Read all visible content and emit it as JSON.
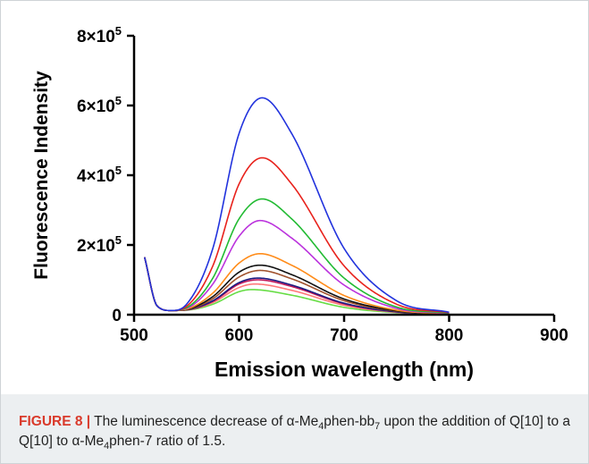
{
  "chart_data": {
    "type": "line",
    "title": "",
    "xlabel": "Emission wavelength (nm)",
    "ylabel": "Fluorescence Indensity",
    "xlim": [
      500,
      900
    ],
    "ylim": [
      0,
      800000
    ],
    "x_ticks": [
      500,
      600,
      700,
      800,
      900
    ],
    "x_tick_labels": [
      "500",
      "600",
      "700",
      "800",
      "900"
    ],
    "y_ticks": [
      0,
      200000,
      400000,
      600000,
      800000
    ],
    "y_tick_labels": [
      {
        "mant": "0",
        "exp": ""
      },
      {
        "mant": "2×10",
        "exp": "5"
      },
      {
        "mant": "4×10",
        "exp": "5"
      },
      {
        "mant": "6×10",
        "exp": "5"
      },
      {
        "mant": "8×10",
        "exp": "5"
      }
    ],
    "x_range": [
      510,
      800
    ],
    "grid": false,
    "legend": "none",
    "series": [
      {
        "color": "#2233dd",
        "peak_x": 622,
        "values": [
          {
            "x": 510,
            "y": 165000
          },
          {
            "x": 522,
            "y": 25000
          },
          {
            "x": 535,
            "y": 12000
          },
          {
            "x": 550,
            "y": 30000
          },
          {
            "x": 575,
            "y": 190000
          },
          {
            "x": 600,
            "y": 520000
          },
          {
            "x": 622,
            "y": 622000
          },
          {
            "x": 650,
            "y": 520000
          },
          {
            "x": 700,
            "y": 190000
          },
          {
            "x": 750,
            "y": 40000
          },
          {
            "x": 800,
            "y": 7000
          }
        ]
      },
      {
        "color": "#e8221c",
        "peak_x": 622,
        "values": [
          {
            "x": 510,
            "y": 165000
          },
          {
            "x": 522,
            "y": 25000
          },
          {
            "x": 535,
            "y": 12000
          },
          {
            "x": 550,
            "y": 24000
          },
          {
            "x": 575,
            "y": 140000
          },
          {
            "x": 600,
            "y": 375000
          },
          {
            "x": 622,
            "y": 450000
          },
          {
            "x": 650,
            "y": 375000
          },
          {
            "x": 700,
            "y": 140000
          },
          {
            "x": 750,
            "y": 30000
          },
          {
            "x": 800,
            "y": 6000
          }
        ]
      },
      {
        "color": "#22bb33",
        "peak_x": 622,
        "values": [
          {
            "x": 510,
            "y": 165000
          },
          {
            "x": 522,
            "y": 25000
          },
          {
            "x": 535,
            "y": 12000
          },
          {
            "x": 550,
            "y": 20000
          },
          {
            "x": 575,
            "y": 105000
          },
          {
            "x": 600,
            "y": 275000
          },
          {
            "x": 622,
            "y": 332000
          },
          {
            "x": 650,
            "y": 275000
          },
          {
            "x": 700,
            "y": 105000
          },
          {
            "x": 750,
            "y": 22000
          },
          {
            "x": 800,
            "y": 5000
          }
        ]
      },
      {
        "color": "#bb33dd",
        "peak_x": 620,
        "values": [
          {
            "x": 510,
            "y": 165000
          },
          {
            "x": 522,
            "y": 25000
          },
          {
            "x": 535,
            "y": 12000
          },
          {
            "x": 550,
            "y": 18000
          },
          {
            "x": 575,
            "y": 88000
          },
          {
            "x": 600,
            "y": 225000
          },
          {
            "x": 620,
            "y": 270000
          },
          {
            "x": 650,
            "y": 220000
          },
          {
            "x": 700,
            "y": 85000
          },
          {
            "x": 750,
            "y": 18000
          },
          {
            "x": 800,
            "y": 4000
          }
        ]
      },
      {
        "color": "#ff8c1a",
        "peak_x": 620,
        "values": [
          {
            "x": 510,
            "y": 165000
          },
          {
            "x": 522,
            "y": 25000
          },
          {
            "x": 535,
            "y": 12000
          },
          {
            "x": 550,
            "y": 16000
          },
          {
            "x": 575,
            "y": 62000
          },
          {
            "x": 600,
            "y": 148000
          },
          {
            "x": 620,
            "y": 175000
          },
          {
            "x": 650,
            "y": 142000
          },
          {
            "x": 700,
            "y": 55000
          },
          {
            "x": 750,
            "y": 13000
          },
          {
            "x": 800,
            "y": 3000
          }
        ]
      },
      {
        "color": "#111111",
        "peak_x": 620,
        "values": [
          {
            "x": 510,
            "y": 165000
          },
          {
            "x": 522,
            "y": 25000
          },
          {
            "x": 535,
            "y": 12000
          },
          {
            "x": 550,
            "y": 15000
          },
          {
            "x": 575,
            "y": 52000
          },
          {
            "x": 600,
            "y": 122000
          },
          {
            "x": 620,
            "y": 142000
          },
          {
            "x": 650,
            "y": 115000
          },
          {
            "x": 700,
            "y": 45000
          },
          {
            "x": 750,
            "y": 11000
          },
          {
            "x": 800,
            "y": 3000
          }
        ]
      },
      {
        "color": "#a0522d",
        "peak_x": 620,
        "values": [
          {
            "x": 510,
            "y": 165000
          },
          {
            "x": 522,
            "y": 25000
          },
          {
            "x": 535,
            "y": 12000
          },
          {
            "x": 550,
            "y": 14500
          },
          {
            "x": 575,
            "y": 46000
          },
          {
            "x": 600,
            "y": 108000
          },
          {
            "x": 620,
            "y": 127000
          },
          {
            "x": 650,
            "y": 103000
          },
          {
            "x": 700,
            "y": 40000
          },
          {
            "x": 750,
            "y": 10000
          },
          {
            "x": 800,
            "y": 3000
          }
        ]
      },
      {
        "color": "#1a1a80",
        "peak_x": 618,
        "values": [
          {
            "x": 510,
            "y": 165000
          },
          {
            "x": 522,
            "y": 25000
          },
          {
            "x": 535,
            "y": 12000
          },
          {
            "x": 550,
            "y": 14000
          },
          {
            "x": 575,
            "y": 40000
          },
          {
            "x": 600,
            "y": 92000
          },
          {
            "x": 618,
            "y": 105000
          },
          {
            "x": 650,
            "y": 85000
          },
          {
            "x": 700,
            "y": 33000
          },
          {
            "x": 750,
            "y": 8000
          },
          {
            "x": 800,
            "y": 2500
          }
        ]
      },
      {
        "color": "#c01a5a",
        "peak_x": 618,
        "values": [
          {
            "x": 510,
            "y": 165000
          },
          {
            "x": 522,
            "y": 25000
          },
          {
            "x": 535,
            "y": 12000
          },
          {
            "x": 550,
            "y": 13800
          },
          {
            "x": 575,
            "y": 38000
          },
          {
            "x": 600,
            "y": 88000
          },
          {
            "x": 618,
            "y": 100000
          },
          {
            "x": 650,
            "y": 81000
          },
          {
            "x": 700,
            "y": 31000
          },
          {
            "x": 750,
            "y": 8000
          },
          {
            "x": 800,
            "y": 2500
          }
        ]
      },
      {
        "color": "#ff7777",
        "peak_x": 615,
        "values": [
          {
            "x": 510,
            "y": 165000
          },
          {
            "x": 522,
            "y": 25000
          },
          {
            "x": 535,
            "y": 12000
          },
          {
            "x": 550,
            "y": 13500
          },
          {
            "x": 575,
            "y": 35000
          },
          {
            "x": 600,
            "y": 78000
          },
          {
            "x": 615,
            "y": 88000
          },
          {
            "x": 650,
            "y": 70000
          },
          {
            "x": 700,
            "y": 27000
          },
          {
            "x": 750,
            "y": 7000
          },
          {
            "x": 800,
            "y": 2000
          }
        ]
      },
      {
        "color": "#66dd44",
        "peak_x": 612,
        "values": [
          {
            "x": 510,
            "y": 165000
          },
          {
            "x": 522,
            "y": 25000
          },
          {
            "x": 535,
            "y": 12000
          },
          {
            "x": 550,
            "y": 13000
          },
          {
            "x": 575,
            "y": 30000
          },
          {
            "x": 600,
            "y": 66000
          },
          {
            "x": 612,
            "y": 72000
          },
          {
            "x": 650,
            "y": 56000
          },
          {
            "x": 700,
            "y": 21000
          },
          {
            "x": 750,
            "y": 6000
          },
          {
            "x": 800,
            "y": 2000
          }
        ]
      }
    ]
  },
  "caption": {
    "label": "FIGURE 8 |",
    "text": "The luminescence decrease of α-Me<sub>4</sub>phen-bb<sub>7</sub> upon the addition of Q[10] to a Q[10] to α-Me<sub>4</sub>phen-7 ratio of 1.5."
  }
}
